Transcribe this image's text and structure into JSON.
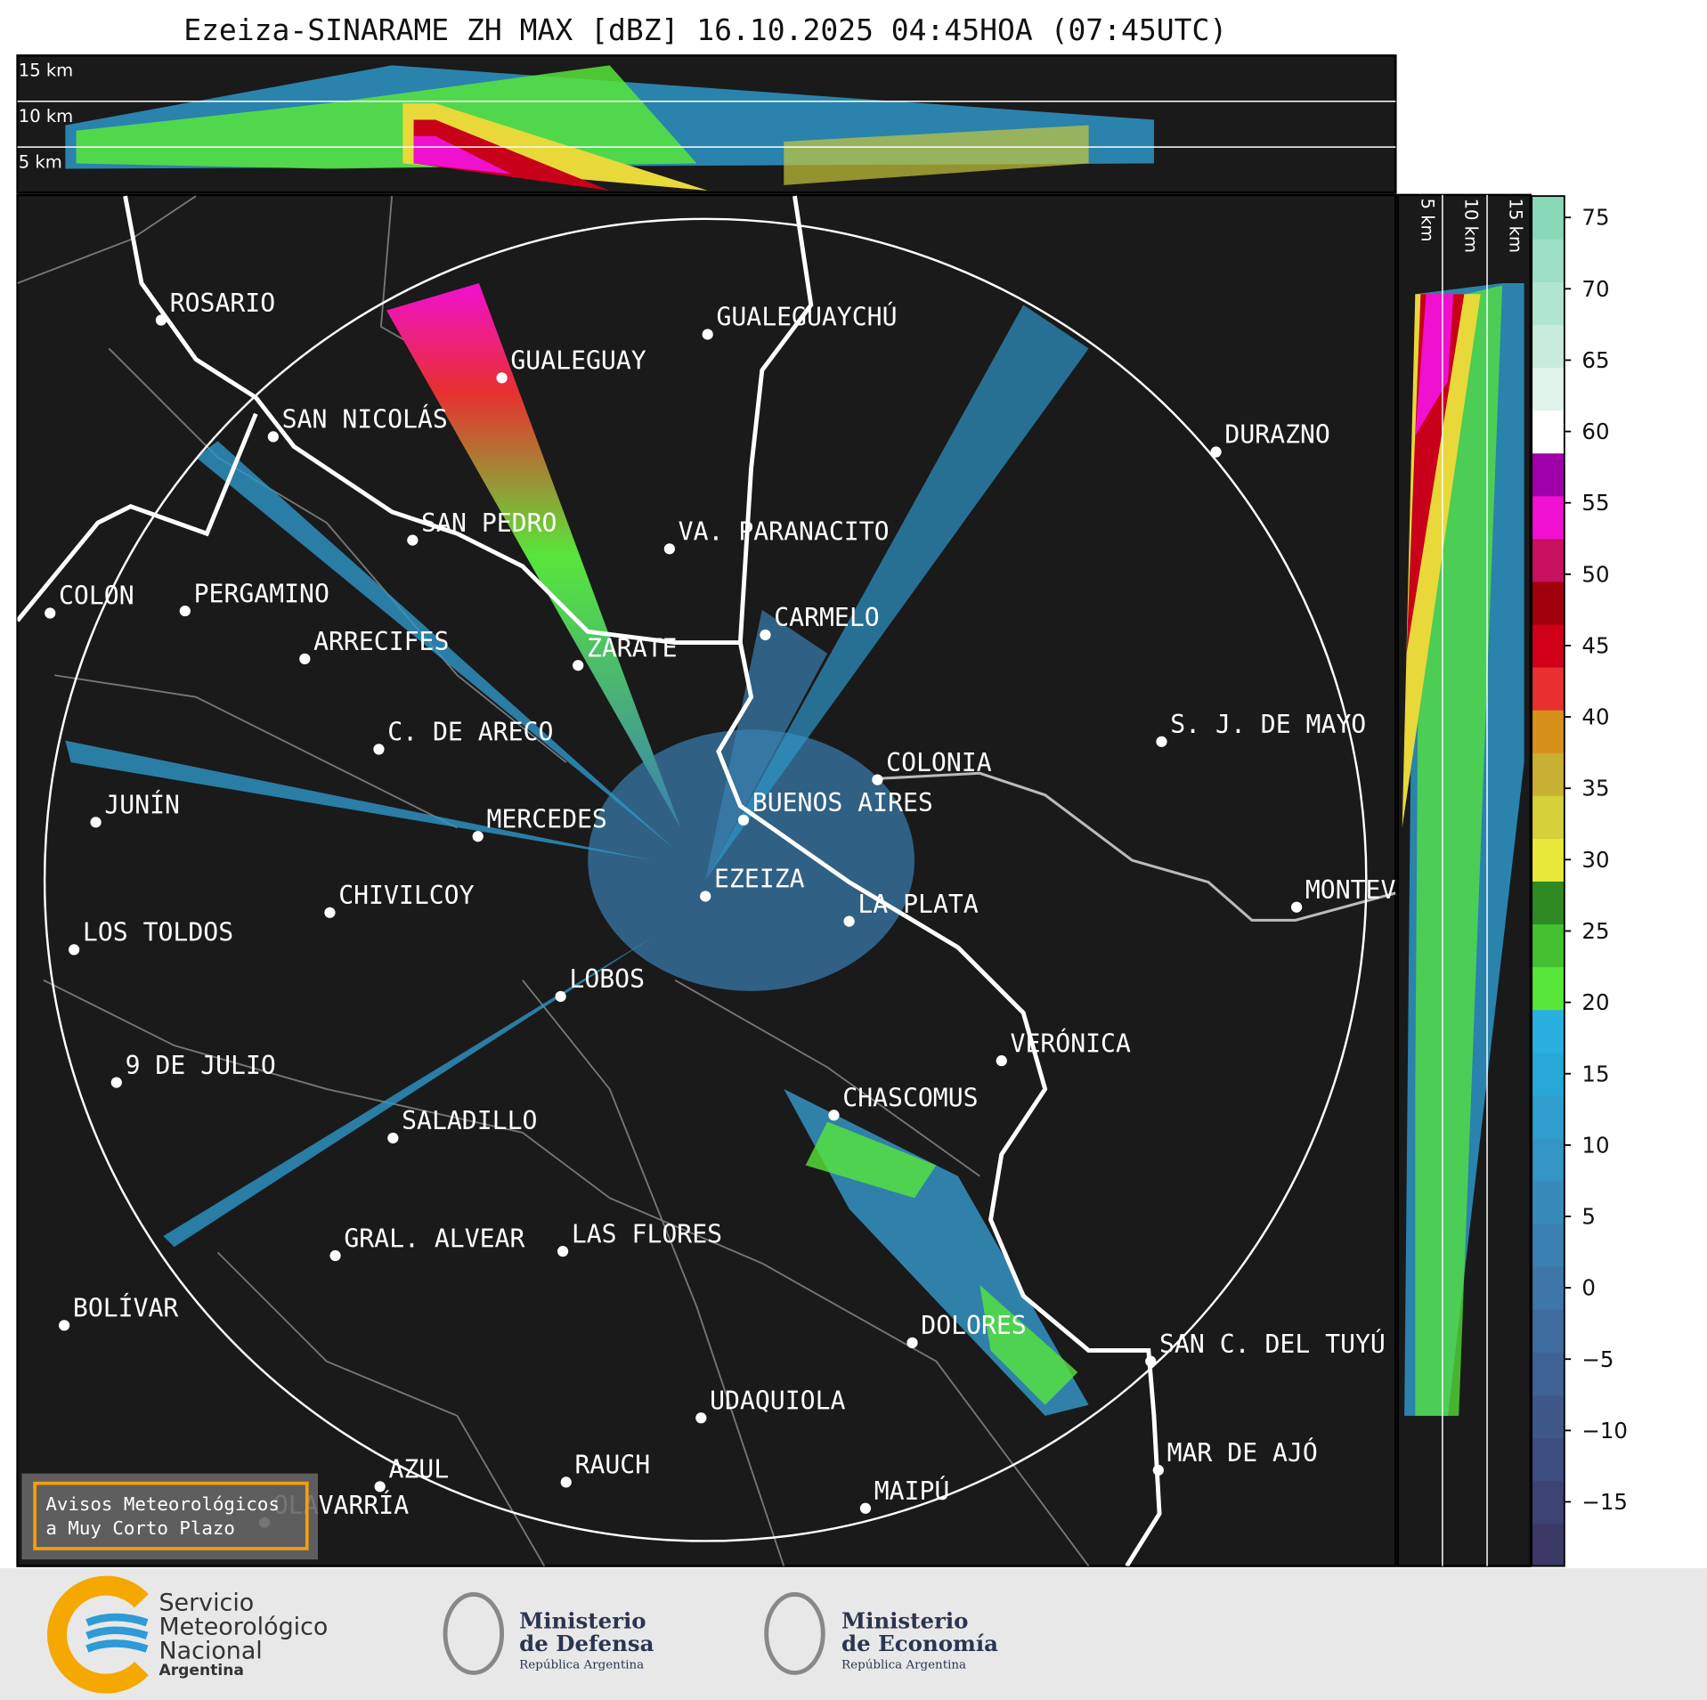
{
  "title": "Ezeiza-SINARAME ZH MAX [dBZ] 16.10.2025 04:45HOA (07:45UTC)",
  "height_labels": [
    "15 km",
    "10 km",
    "5 km"
  ],
  "profile_labels": [
    "5 km",
    "10 km",
    "15 km"
  ],
  "cities": [
    "ROSARIO",
    "GUALEGUAYCHÚ",
    "GUALEGUAY",
    "SAN NICOLÁS",
    "DURAZNO",
    "SAN PEDRO",
    "VA. PARANACITO",
    "COLON",
    "PERGAMINO",
    "CARMELO",
    "ARRECIFES",
    "ZÁRATE",
    "S. J. DE MAYO",
    "C. DE ARECO",
    "COLONIA",
    "BUENOS AIRES",
    "JUNÍN",
    "MERCEDES",
    "MONTEV",
    "EZEIZA",
    "CHIVILCOY",
    "LA PLATA",
    "LOS TOLDOS",
    "LOBOS",
    "VERÓNICA",
    "9 DE JULIO",
    "CHASCOMUS",
    "SALADILLO",
    "GRAL. ALVEAR",
    "LAS FLORES",
    "BOLÍVAR",
    "DOLORES",
    "SAN C. DEL TUYÚ",
    "UDAQUIOLA",
    "MAR DE AJÓ",
    "RAUCH",
    "AZUL",
    "OLAVARRÍA",
    "MAIPÚ"
  ],
  "colorbar": {
    "clim": [
      -19.5,
      76.5
    ],
    "ticks": [
      {
        "value": -15,
        "label": "−15"
      },
      {
        "value": -10,
        "label": "−10"
      },
      {
        "value": -5,
        "label": "−5"
      },
      0,
      5,
      10,
      15,
      20,
      25,
      30,
      35,
      40,
      45,
      50,
      55,
      60,
      65,
      70,
      75
    ],
    "colors": [
      "#3b3a66",
      "#3d4474",
      "#3e4e80",
      "#3f588a",
      "#3f6294",
      "#3e6c9e",
      "#3d76a8",
      "#3b80b2",
      "#388abb",
      "#3494c4",
      "#2f9ecd",
      "#28a8d8",
      "#2ab0e0",
      "#58e63a",
      "#44c030",
      "#2f8a24",
      "#e8e83a",
      "#d6d03a",
      "#c8b034",
      "#d8901c",
      "#e83030",
      "#d00018",
      "#a0000c",
      "#c81060",
      "#f010d0",
      "#a000a8",
      "#ffffff",
      "#e0f4ec",
      "#c8ecdc",
      "#b0e6d0",
      "#9cdfc4",
      "#88d8b8"
    ]
  },
  "notice": [
    "Avisos Meteorológicos",
    "a Muy Corto Plazo"
  ],
  "logos": {
    "smn": [
      "Servicio",
      "Meteorológico",
      "Nacional",
      "Argentina"
    ],
    "defensa": [
      "Ministerio",
      "de Defensa",
      "República Argentina"
    ],
    "economia": [
      "Ministerio",
      "de Economía",
      "República Argentina"
    ]
  }
}
